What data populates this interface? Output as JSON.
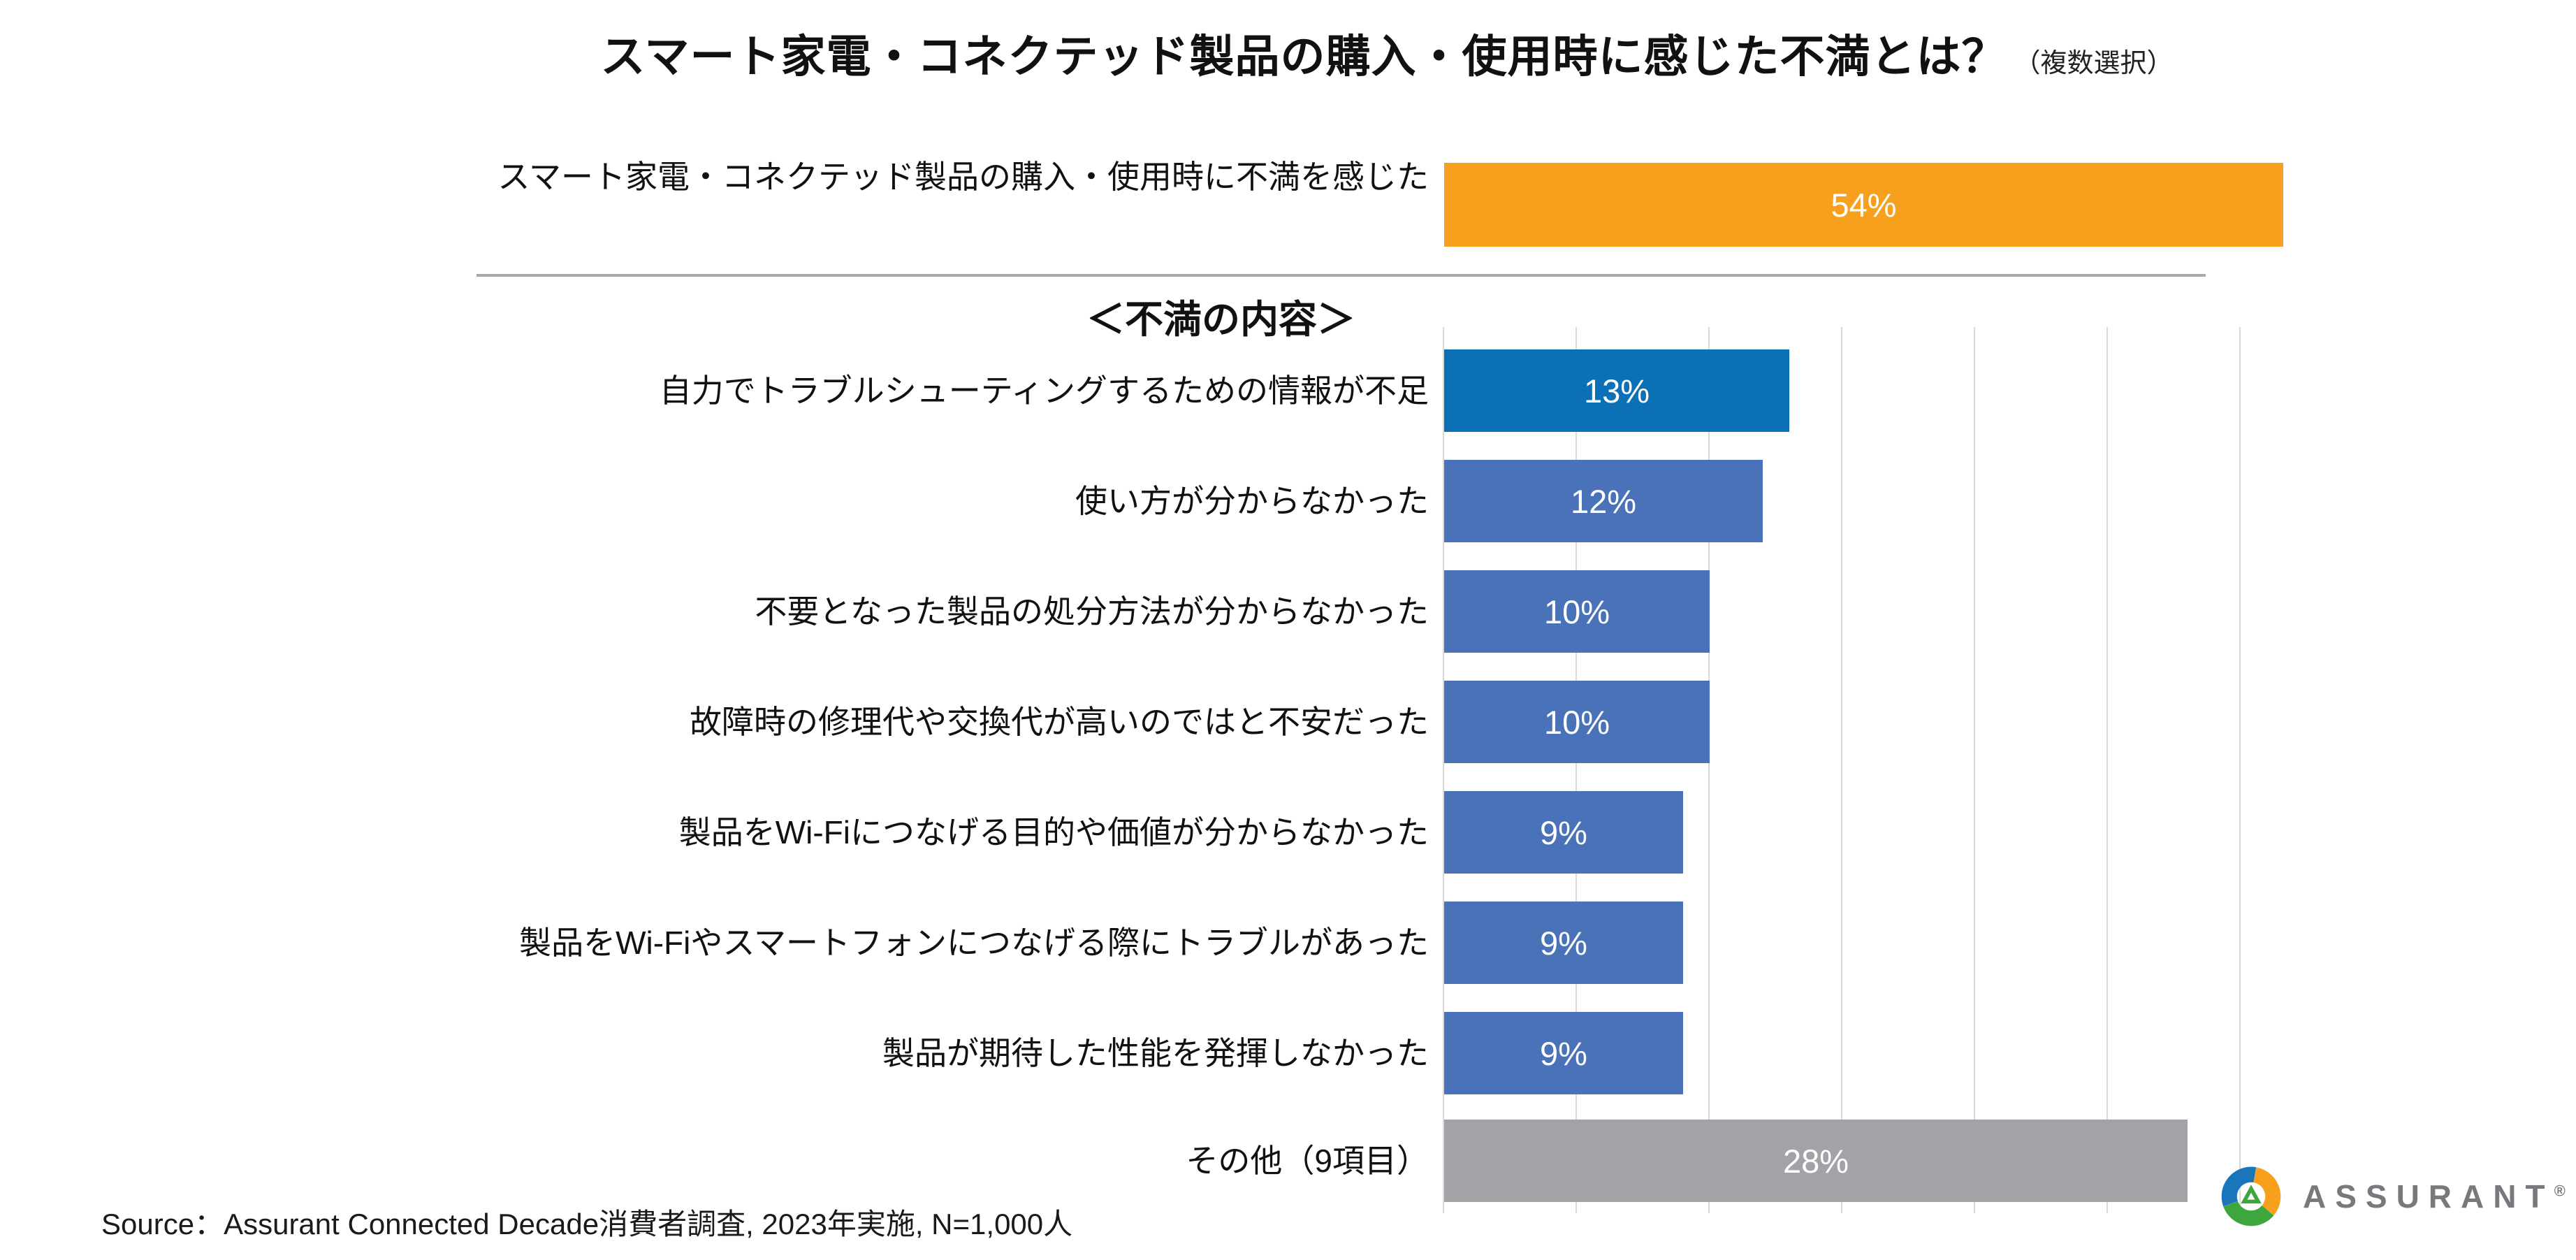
{
  "title": {
    "text": "スマート家電・コネクテッド製品の購入・使用時に感じた不満とは？",
    "note": "（複数選択）"
  },
  "section_header": "＜不満の内容＞",
  "source": "Source：Assurant Connected Decade消費者調査, 2023年実施, N=1,000人",
  "logo": {
    "wordmark": "ASSURANT",
    "registered": "®"
  },
  "colors": {
    "overall_bar": "#F7A01E",
    "highlight_bar": "#0B70B6",
    "default_bar": "#4A72B8",
    "other_bar": "#A2A3A6",
    "gridline": "#D9D9D9",
    "divider": "#A9A9AC",
    "value_text": "#FFFFFF",
    "wordmark_gray": "#77797C",
    "logo_orange": "#F6A01E",
    "logo_green": "#3DA63C",
    "logo_blue": "#1B75BB"
  },
  "chart_data": [
    {
      "type": "bar",
      "orientation": "horizontal",
      "title": "スマート家電・コネクテッド製品の購入・使用時に感じた不満とは？（複数選択）",
      "categories": [
        "スマート家電・コネクテッド製品の購入・使用時に不満を感じた"
      ],
      "values": [
        54
      ],
      "unit": "%",
      "bar_colors": [
        "#F7A01E"
      ],
      "xlim": [
        0,
        60
      ],
      "grid": false,
      "data_labels": "inside-center"
    },
    {
      "type": "bar",
      "orientation": "horizontal",
      "title": "＜不満の内容＞",
      "categories": [
        "自力でトラブルシューティングするための情報が不足",
        "使い方が分からなかった",
        "不要となった製品の処分方法が分からなかった",
        "故障時の修理代や交換代が高いのではと不安だった",
        "製品をWi-Fiにつなげる目的や価値が分からなかった",
        "製品をWi-Fiやスマートフォンにつなげる際にトラブルがあった",
        "製品が期待した性能を発揮しなかった",
        "その他（9項目）"
      ],
      "values": [
        13,
        12,
        10,
        10,
        9,
        9,
        9,
        28
      ],
      "unit": "%",
      "bar_colors": [
        "#0B70B6",
        "#4A72B8",
        "#4A72B8",
        "#4A72B8",
        "#4A72B8",
        "#4A72B8",
        "#4A72B8",
        "#A2A3A6"
      ],
      "xlim": [
        0,
        30
      ],
      "grid": true,
      "gridline_interval": 5,
      "data_labels": "inside-center"
    }
  ]
}
